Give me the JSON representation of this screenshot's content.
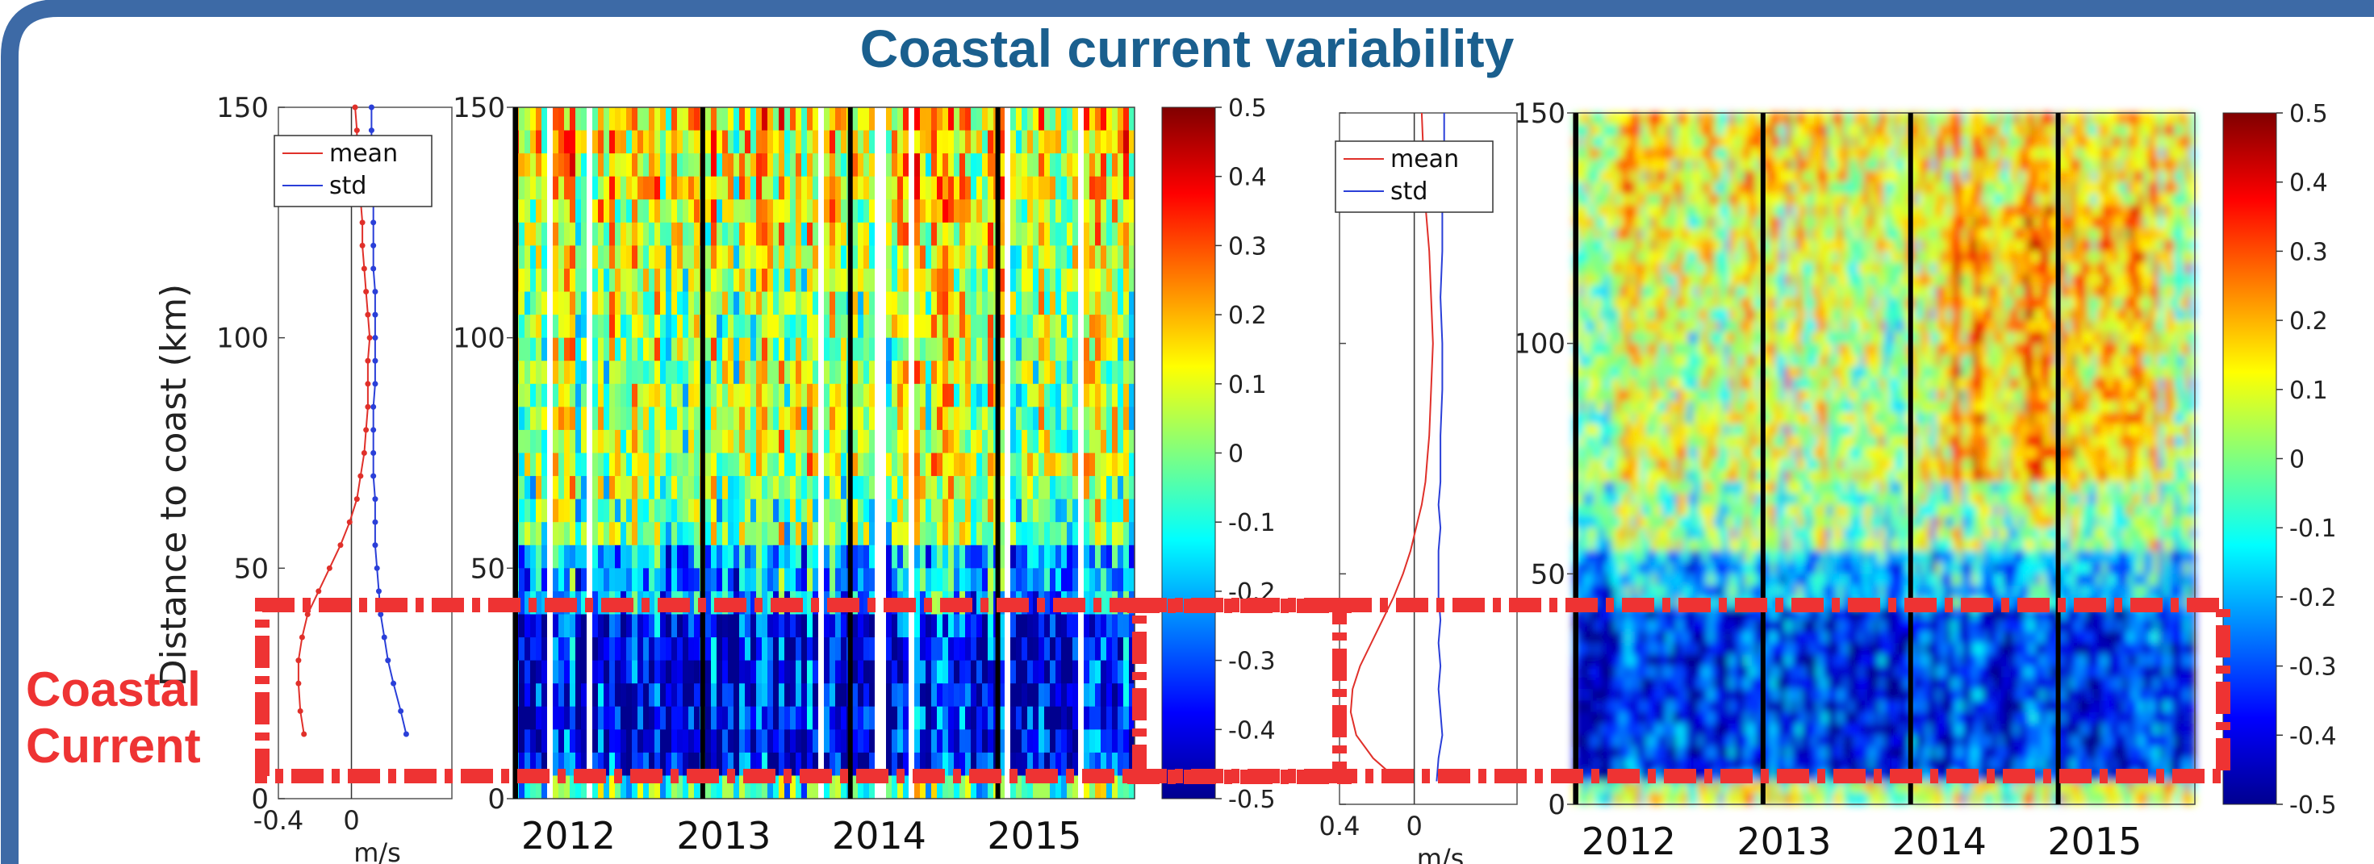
{
  "title": "Coastal current variability",
  "annotation": [
    "Coastal",
    "Current"
  ],
  "colors": {
    "title": "#1a5f8e",
    "frame": "#3d6aa6",
    "highlight": "#ee3333",
    "mean_line": "#e0302a",
    "std_line": "#2a3fd8"
  },
  "chart_data": [
    {
      "type": "line",
      "panel": "left-profile",
      "title": "",
      "ylabel": "Distance to coast (km)",
      "xlabel": "m/s",
      "xlim": [
        -0.4,
        0.55
      ],
      "ylim": [
        0,
        150
      ],
      "xticks": [
        "-0.4",
        "0"
      ],
      "yticks": [
        "0",
        "50",
        "100",
        "150"
      ],
      "legend": [
        "mean",
        "std"
      ],
      "legend_position": "top-left",
      "series": [
        {
          "name": "mean",
          "y": [
            14,
            19,
            25,
            30,
            35,
            40,
            45,
            50,
            55,
            60,
            65,
            70,
            75,
            80,
            85,
            90,
            95,
            100,
            105,
            110,
            115,
            120,
            125,
            130,
            135,
            140,
            145,
            150
          ],
          "x": [
            -0.26,
            -0.28,
            -0.29,
            -0.29,
            -0.27,
            -0.24,
            -0.18,
            -0.12,
            -0.06,
            -0.01,
            0.03,
            0.05,
            0.07,
            0.08,
            0.09,
            0.09,
            0.09,
            0.1,
            0.09,
            0.08,
            0.07,
            0.06,
            0.06,
            0.05,
            0.04,
            0.03,
            0.03,
            0.02
          ]
        },
        {
          "name": "std",
          "y": [
            14,
            19,
            25,
            30,
            35,
            40,
            45,
            50,
            55,
            60,
            65,
            70,
            75,
            80,
            85,
            90,
            95,
            100,
            105,
            110,
            115,
            120,
            125,
            130,
            135,
            140,
            145,
            150
          ],
          "x": [
            0.3,
            0.27,
            0.23,
            0.2,
            0.18,
            0.16,
            0.15,
            0.14,
            0.13,
            0.13,
            0.13,
            0.12,
            0.12,
            0.12,
            0.12,
            0.13,
            0.13,
            0.13,
            0.13,
            0.13,
            0.12,
            0.12,
            0.12,
            0.12,
            0.12,
            0.11,
            0.11,
            0.11
          ]
        }
      ]
    },
    {
      "type": "heatmap",
      "panel": "left-heatmap",
      "title": "",
      "ylim": [
        0,
        150
      ],
      "yticks": [
        "0",
        "50",
        "100",
        "150"
      ],
      "xticks": [
        "2012",
        "2013",
        "2014",
        "2015"
      ],
      "year_divider_count": 4,
      "colorbar": {
        "range": [
          -0.5,
          0.5
        ],
        "ticks": [
          "0.5",
          "0.4",
          "0.3",
          "0.2",
          "0.1",
          "0",
          "-0.1",
          "-0.2",
          "-0.3",
          "-0.4",
          "-0.5"
        ]
      },
      "note_profile": "velocity (m/s) vs distance to coast; mostly 0 to +0.3 above 50 km, -0.3 to -0.5 between 5 and 40 km"
    },
    {
      "type": "line",
      "panel": "right-profile",
      "title": "",
      "xlabel": "m/s",
      "xlim": [
        -0.4,
        0.55
      ],
      "ylim": [
        0,
        150
      ],
      "xticks": [
        "0.4",
        "0"
      ],
      "yticks": [
        "0",
        "50",
        "100",
        "150"
      ],
      "legend": [
        "mean",
        "std"
      ],
      "legend_position": "top-left",
      "series": [
        {
          "name": "mean",
          "y": [
            5,
            10,
            15,
            20,
            25,
            30,
            35,
            40,
            45,
            50,
            55,
            60,
            65,
            70,
            75,
            80,
            90,
            100,
            110,
            120,
            130,
            140,
            150
          ],
          "x": [
            -0.08,
            -0.22,
            -0.31,
            -0.34,
            -0.33,
            -0.29,
            -0.23,
            -0.17,
            -0.11,
            -0.06,
            -0.02,
            0.01,
            0.04,
            0.06,
            0.07,
            0.08,
            0.09,
            0.1,
            0.09,
            0.08,
            0.06,
            0.05,
            0.04
          ]
        },
        {
          "name": "std",
          "y": [
            5,
            10,
            15,
            20,
            25,
            30,
            35,
            40,
            45,
            50,
            55,
            60,
            65,
            70,
            75,
            80,
            90,
            100,
            110,
            120,
            130,
            140,
            150
          ],
          "x": [
            0.12,
            0.13,
            0.15,
            0.14,
            0.13,
            0.14,
            0.13,
            0.14,
            0.13,
            0.13,
            0.13,
            0.14,
            0.13,
            0.14,
            0.14,
            0.14,
            0.15,
            0.15,
            0.14,
            0.15,
            0.15,
            0.16,
            0.16
          ]
        }
      ]
    },
    {
      "type": "heatmap",
      "panel": "right-heatmap",
      "title": "",
      "ylim": [
        0,
        150
      ],
      "yticks": [
        "0",
        "50",
        "100",
        "150"
      ],
      "xticks": [
        "2012",
        "2013",
        "2014",
        "2015"
      ],
      "year_divider_count": 4,
      "colorbar": {
        "range": [
          -0.5,
          0.5
        ],
        "ticks": [
          "0.5",
          "0.4",
          "0.3",
          "0.2",
          "0.1",
          "0",
          "-0.1",
          "-0.2",
          "-0.3",
          "-0.4",
          "-0.5"
        ]
      },
      "note_profile": "smoothed velocity field; positive 0.1-0.4 above 60 km, strong negative -0.3 to -0.5 between 5 and 40 km"
    }
  ]
}
